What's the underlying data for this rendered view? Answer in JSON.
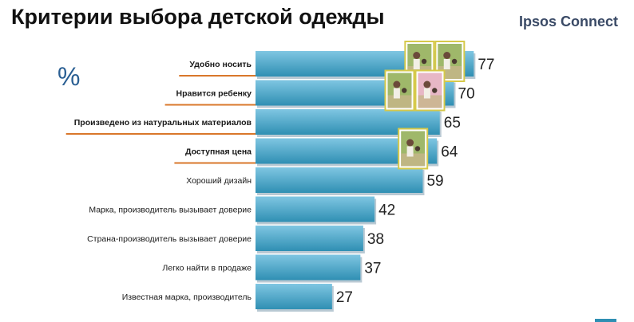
{
  "header": {
    "title": "Критерии выбора детской одежды",
    "brand": "Ipsos Connect"
  },
  "unit_label": "%",
  "colors": {
    "bar_top": "#7fc6e2",
    "bar_bottom": "#2f8fb3",
    "highlight_line": "#d9772b",
    "photo_frame": "#d6c94a"
  },
  "chart_data": {
    "type": "bar",
    "orientation": "horizontal",
    "categories": [
      "Удобно носить",
      "Нравится ребенку",
      "Произведено из натуральных материалов",
      "Доступная цена",
      "Хороший дизайн",
      "Марка, производитель вызывает доверие",
      "Страна-производитель вызывает доверие",
      "Легко найти в продаже",
      "Известная марка, производитель"
    ],
    "values": [
      77,
      70,
      65,
      64,
      59,
      42,
      38,
      37,
      27
    ],
    "highlighted": [
      true,
      true,
      true,
      true,
      false,
      false,
      false,
      false,
      false
    ],
    "photos_per_bar": [
      2,
      2,
      0,
      1,
      0,
      0,
      0,
      0,
      0
    ],
    "xlim": [
      0,
      100
    ],
    "grid": false,
    "legend": "none"
  }
}
